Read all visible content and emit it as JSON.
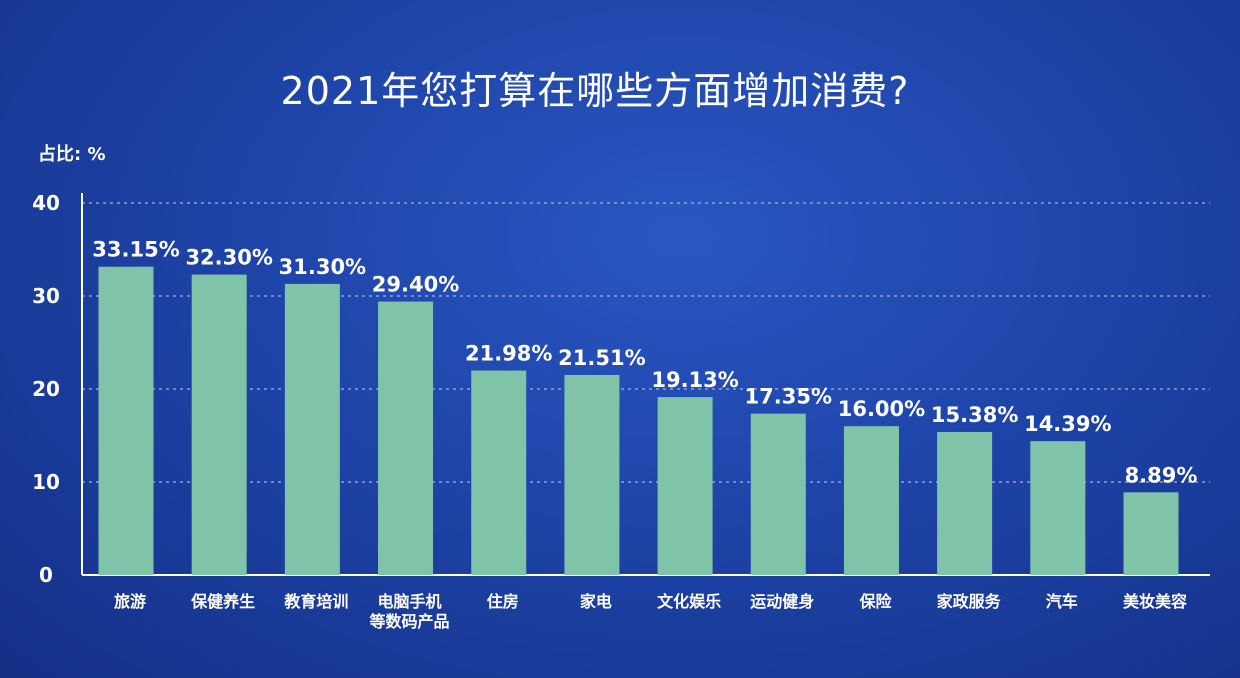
{
  "chart_data": {
    "type": "bar",
    "title": "2021年您打算在哪些方面增加消费?",
    "ylabel": "占比: %",
    "ylim": [
      0,
      40
    ],
    "yticks": [
      0,
      10,
      20,
      30,
      40
    ],
    "grid": true,
    "categories": [
      [
        "旅游"
      ],
      [
        "保健养生"
      ],
      [
        "教育培训"
      ],
      [
        "电脑手机",
        "等数码产品"
      ],
      [
        "住房"
      ],
      [
        "家电"
      ],
      [
        "文化娱乐"
      ],
      [
        "运动健身"
      ],
      [
        "保险"
      ],
      [
        "家政服务"
      ],
      [
        "汽车"
      ],
      [
        "美妆美容"
      ]
    ],
    "values": [
      33.15,
      32.3,
      31.3,
      29.4,
      21.98,
      21.51,
      19.13,
      17.35,
      16.0,
      15.38,
      14.39,
      8.89
    ],
    "value_labels": [
      "33.15%",
      "32.30%",
      "31.30%",
      "29.40%",
      "21.98%",
      "21.51%",
      "19.13%",
      "17.35%",
      "16.00%",
      "15.38%",
      "14.39%",
      "8.89%"
    ],
    "bar_color": "#7fc4a8"
  }
}
